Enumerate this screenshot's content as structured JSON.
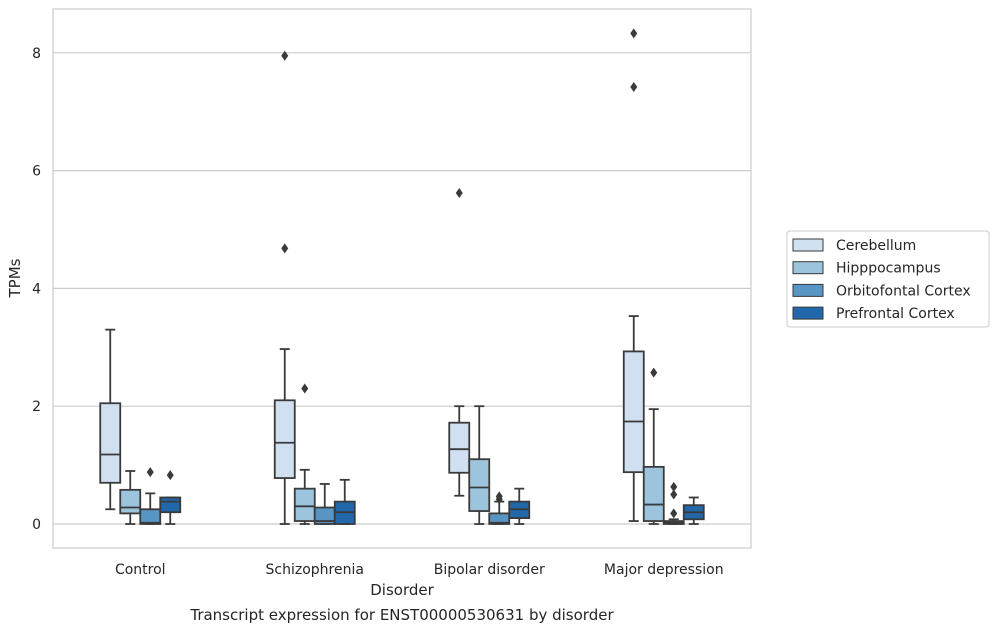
{
  "chart_data": {
    "type": "box",
    "title": "",
    "caption": "Transcript expression for ENST00000530631 by disorder",
    "xlabel": "Disorder",
    "ylabel": "TPMs",
    "ylim": [
      -0.4,
      8.75
    ],
    "yticks": [
      0,
      2,
      4,
      6,
      8
    ],
    "grid": "horizontal",
    "legend_position": "right",
    "categories": [
      "Control",
      "Schizophrenia",
      "Bipolar disorder",
      "Major depression"
    ],
    "series": [
      {
        "name": "Cerebellum",
        "color": "#d0e0f1",
        "boxes": [
          {
            "whislo": 0.25,
            "q1": 0.7,
            "med": 1.18,
            "q3": 2.05,
            "whishi": 3.3,
            "fliers": []
          },
          {
            "whislo": 0.0,
            "q1": 0.78,
            "med": 1.38,
            "q3": 2.1,
            "whishi": 2.97,
            "fliers": [
              4.68,
              7.95
            ]
          },
          {
            "whislo": 0.48,
            "q1": 0.87,
            "med": 1.27,
            "q3": 1.72,
            "whishi": 2.0,
            "fliers": [
              5.62
            ]
          },
          {
            "whislo": 0.05,
            "q1": 0.88,
            "med": 1.74,
            "q3": 2.93,
            "whishi": 3.53,
            "fliers": [
              7.42,
              8.33
            ]
          }
        ]
      },
      {
        "name": "Hipppocampus",
        "color": "#9dc4dd",
        "boxes": [
          {
            "whislo": 0.0,
            "q1": 0.18,
            "med": 0.28,
            "q3": 0.58,
            "whishi": 0.9,
            "fliers": []
          },
          {
            "whislo": 0.0,
            "q1": 0.05,
            "med": 0.3,
            "q3": 0.6,
            "whishi": 0.92,
            "fliers": [
              2.3
            ]
          },
          {
            "whislo": 0.0,
            "q1": 0.22,
            "med": 0.62,
            "q3": 1.1,
            "whishi": 2.0,
            "fliers": []
          },
          {
            "whislo": 0.0,
            "q1": 0.05,
            "med": 0.33,
            "q3": 0.97,
            "whishi": 1.95,
            "fliers": [
              2.57
            ]
          }
        ]
      },
      {
        "name": "Orbitofontal Cortex",
        "color": "#5795c4",
        "boxes": [
          {
            "whislo": 0.0,
            "q1": 0.0,
            "med": 0.02,
            "q3": 0.25,
            "whishi": 0.52,
            "fliers": [
              0.88
            ]
          },
          {
            "whislo": 0.0,
            "q1": 0.0,
            "med": 0.05,
            "q3": 0.28,
            "whishi": 0.68,
            "fliers": []
          },
          {
            "whislo": 0.0,
            "q1": 0.0,
            "med": 0.02,
            "q3": 0.18,
            "whishi": 0.38,
            "fliers": [
              0.47,
              0.42
            ]
          },
          {
            "whislo": 0.0,
            "q1": 0.0,
            "med": 0.02,
            "q3": 0.05,
            "whishi": 0.08,
            "fliers": [
              0.18,
              0.5,
              0.63
            ]
          }
        ]
      },
      {
        "name": "Prefrontal Cortex",
        "color": "#2267a9",
        "boxes": [
          {
            "whislo": 0.0,
            "q1": 0.2,
            "med": 0.38,
            "q3": 0.45,
            "whishi": 0.45,
            "fliers": [
              0.83
            ]
          },
          {
            "whislo": 0.0,
            "q1": 0.0,
            "med": 0.2,
            "q3": 0.38,
            "whishi": 0.75,
            "fliers": []
          },
          {
            "whislo": 0.0,
            "q1": 0.1,
            "med": 0.25,
            "q3": 0.38,
            "whishi": 0.6,
            "fliers": []
          },
          {
            "whislo": 0.0,
            "q1": 0.08,
            "med": 0.2,
            "q3": 0.32,
            "whishi": 0.45,
            "fliers": []
          }
        ]
      }
    ]
  }
}
